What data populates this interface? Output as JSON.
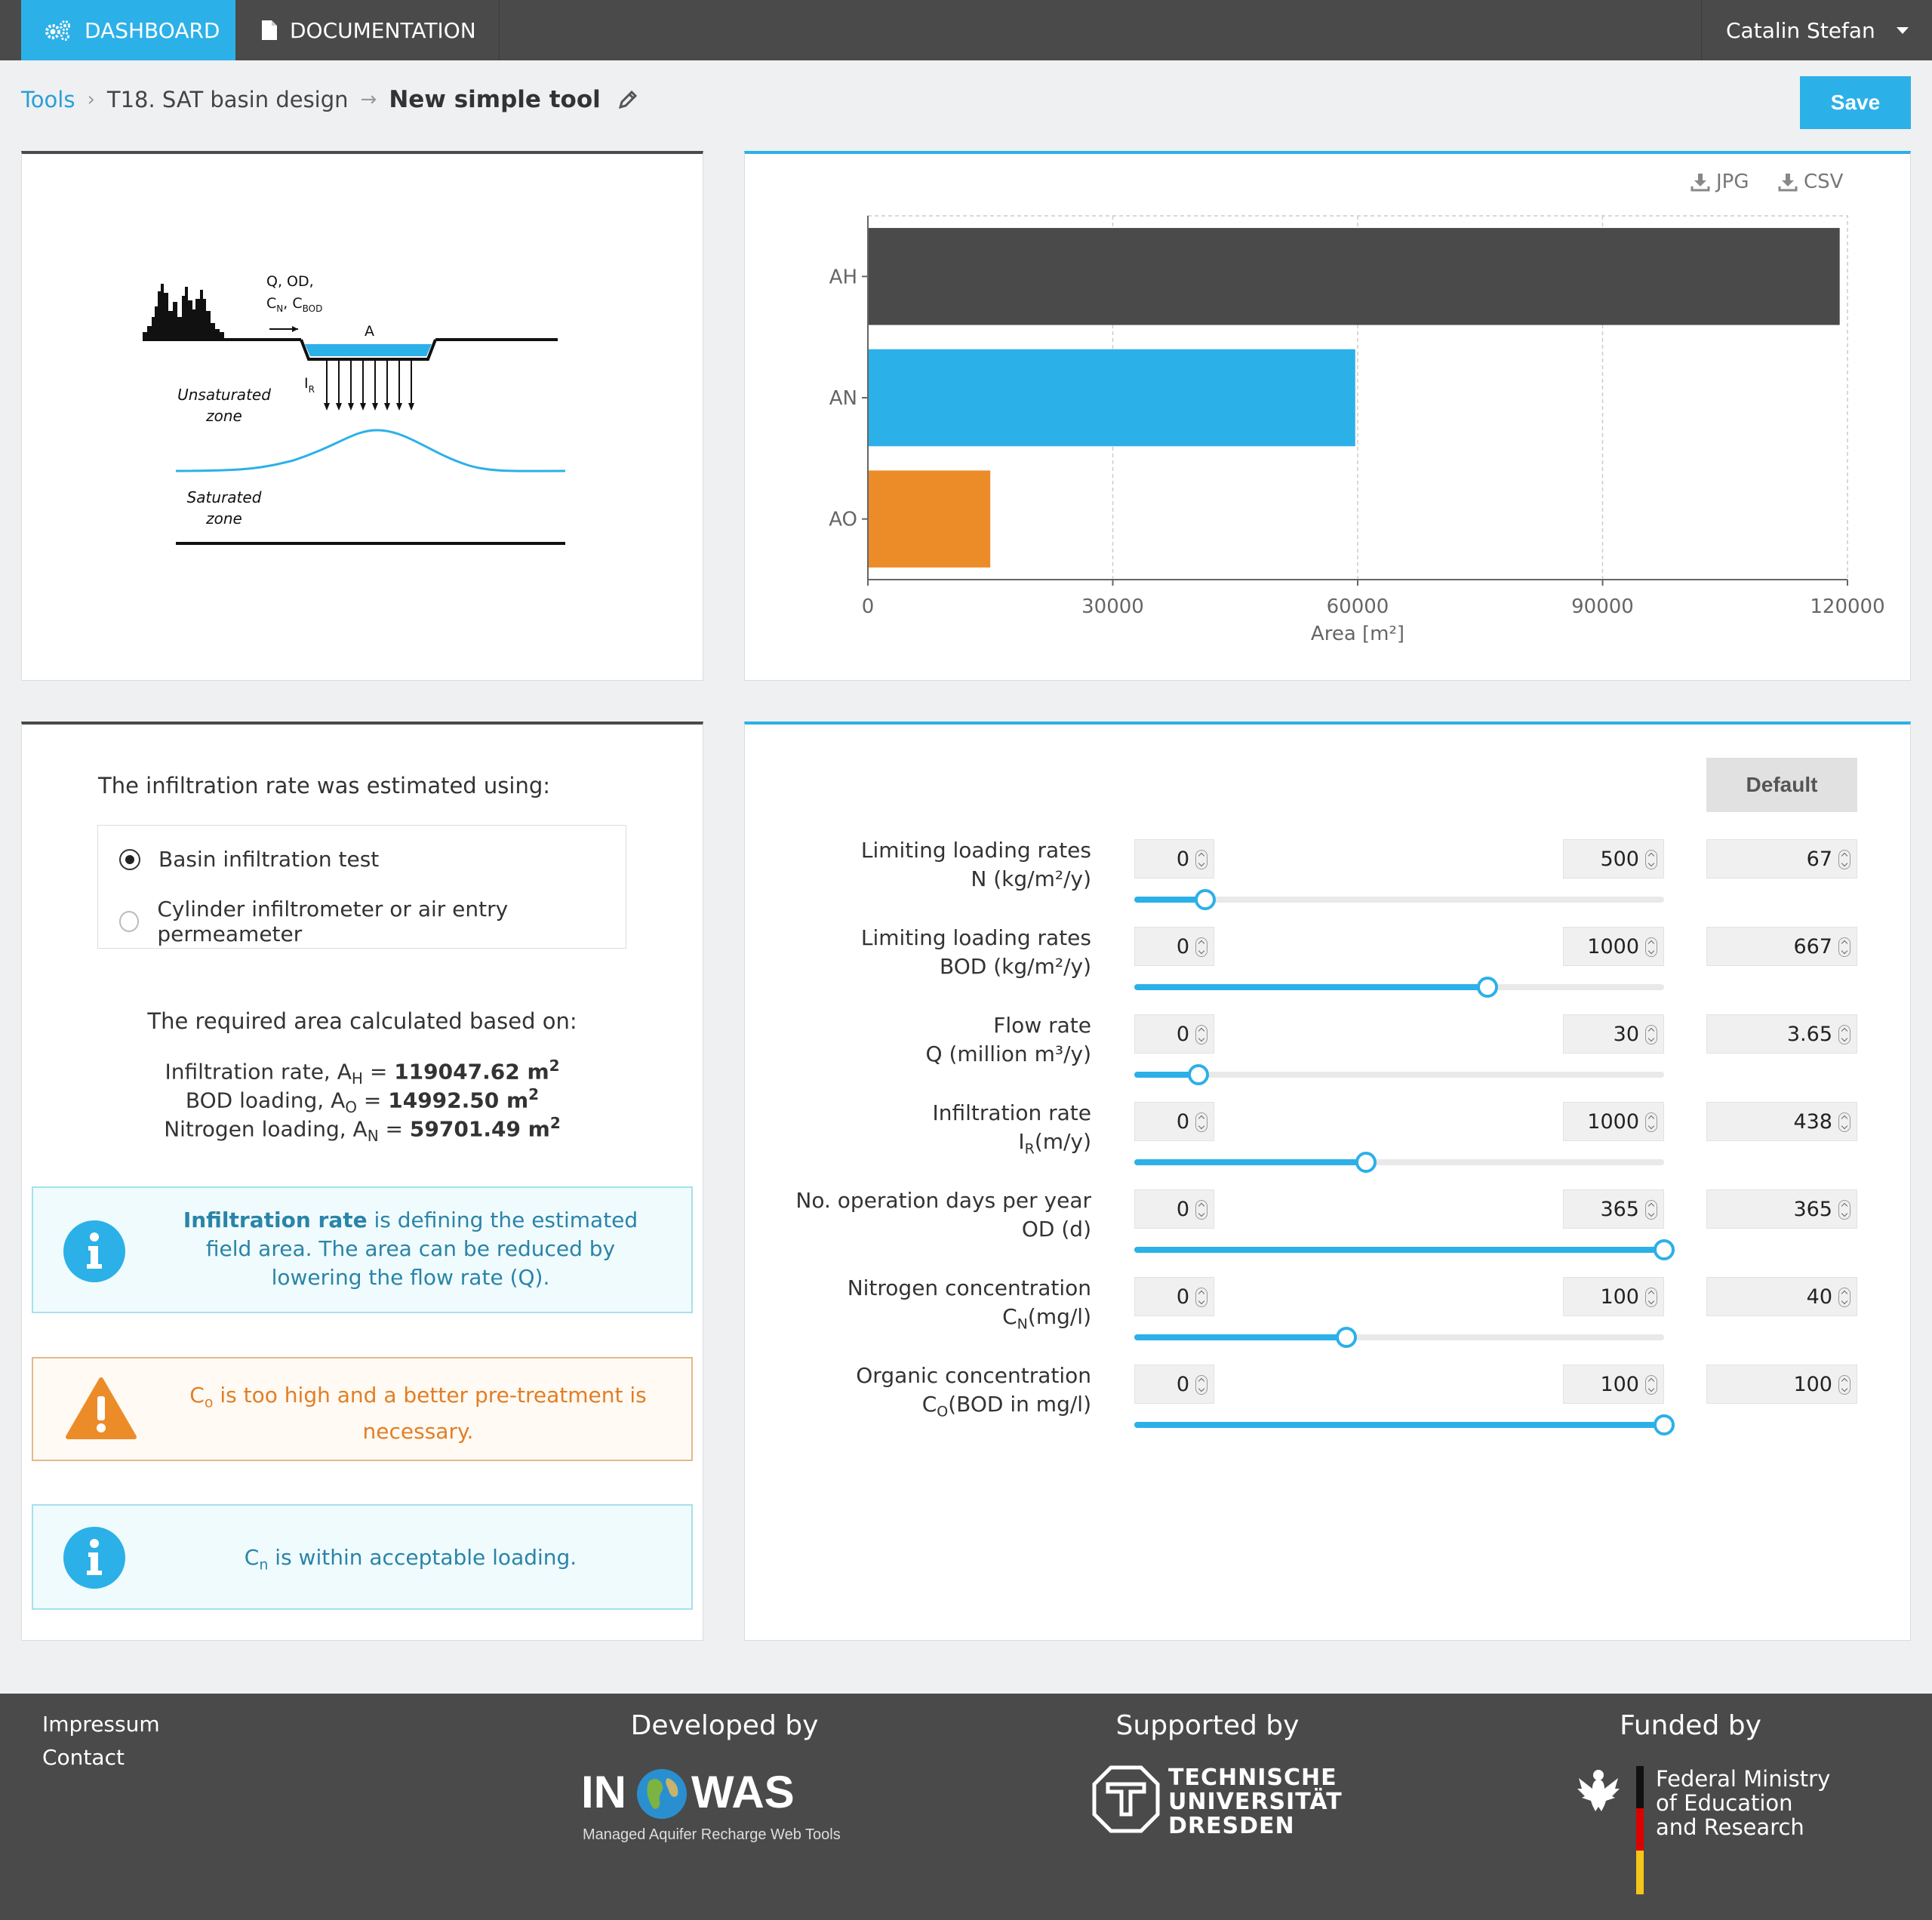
{
  "nav": {
    "dashboard_label": "DASHBOARD",
    "documentation_label": "DOCUMENTATION",
    "user_name": "Catalin Stefan"
  },
  "breadcrumb": {
    "tools": "Tools",
    "section": "T18. SAT basin design",
    "current": "New simple tool"
  },
  "toolbar": {
    "save_label": "Save"
  },
  "diagram": {
    "inflow_label_1": "Q, OD,",
    "inflow_label_2": "C",
    "inflow_sub_n": "N",
    "inflow_sep": ", C",
    "inflow_sub_bod": "BOD",
    "area_label": "A",
    "ir_label": "I",
    "ir_sub": "R",
    "unsat_1": "Unsaturated",
    "unsat_2": "zone",
    "sat_1": "Saturated",
    "sat_2": "zone"
  },
  "chart_export": {
    "jpg": "JPG",
    "csv": "CSV"
  },
  "chart_data": {
    "type": "bar",
    "orientation": "horizontal",
    "categories": [
      "AH",
      "AN",
      "AO"
    ],
    "values": [
      119047.62,
      59701.49,
      14992.5
    ],
    "colors": [
      "#4a4a4a",
      "#2cb0e8",
      "#ec8c29"
    ],
    "xlabel": "Area [m²]",
    "xlim": [
      0,
      120000
    ],
    "xticks": [
      0,
      30000,
      60000,
      90000,
      120000
    ],
    "grid": true
  },
  "infiltration": {
    "title": "The infiltration rate was estimated using:",
    "options": [
      "Basin infiltration test",
      "Cylinder infiltrometer or air entry permeameter"
    ],
    "selected_index": 0
  },
  "area": {
    "title": "The required area calculated based on:",
    "rows": [
      {
        "prefix": "Infiltration rate, A",
        "sub": "H",
        "eq": " = ",
        "value": "119047.62 m",
        "sup": "2"
      },
      {
        "prefix": "BOD loading, A",
        "sub": "O",
        "eq": " = ",
        "value": "14992.50 m",
        "sup": "2"
      },
      {
        "prefix": "Nitrogen loading, A",
        "sub": "N",
        "eq": " = ",
        "value": "59701.49 m",
        "sup": "2"
      }
    ]
  },
  "messages": {
    "info1_bold": "Infiltration rate",
    "info1_text": " is defining the estimated field area. The area can be reduced by lowering the flow rate (Q).",
    "warn_c": "C",
    "warn_sub": "o",
    "warn_text": " is too high and a better pre-treatment is necessary.",
    "info2_c": "C",
    "info2_sub": "n",
    "info2_text": " is within acceptable loading."
  },
  "params": {
    "default_label": "Default",
    "rows": [
      {
        "label1": "Limiting loading rates",
        "label2": "N (kg/m²/y)",
        "label2_sub": "",
        "label2_tail": "",
        "min": "0",
        "max": "500",
        "value": "67",
        "fraction": 0.134
      },
      {
        "label1": "Limiting loading rates",
        "label2": "BOD (kg/m²/y)",
        "label2_sub": "",
        "label2_tail": "",
        "min": "0",
        "max": "1000",
        "value": "667",
        "fraction": 0.667
      },
      {
        "label1": "Flow rate",
        "label2": "Q (million m³/y)",
        "label2_sub": "",
        "label2_tail": "",
        "min": "0",
        "max": "30",
        "value": "3.65",
        "fraction": 0.1217
      },
      {
        "label1": "Infiltration rate",
        "label2": "I",
        "label2_sub": "R",
        "label2_tail": "(m/y)",
        "min": "0",
        "max": "1000",
        "value": "438",
        "fraction": 0.438
      },
      {
        "label1": "No. operation days per year",
        "label2": "OD (d)",
        "label2_sub": "",
        "label2_tail": "",
        "min": "0",
        "max": "365",
        "value": "365",
        "fraction": 1.0
      },
      {
        "label1": "Nitrogen concentration",
        "label2": "C",
        "label2_sub": "N",
        "label2_tail": "(mg/l)",
        "min": "0",
        "max": "100",
        "value": "40",
        "fraction": 0.4
      },
      {
        "label1": "Organic concentration",
        "label2": "C",
        "label2_sub": "O",
        "label2_tail": "(BOD in mg/l)",
        "min": "0",
        "max": "100",
        "value": "100",
        "fraction": 1.0
      }
    ]
  },
  "footer": {
    "impressum": "Impressum",
    "contact": "Contact",
    "developed_by": "Developed by",
    "supported_by": "Supported by",
    "funded_by": "Funded by",
    "inowas_in": "IN",
    "inowas_was": "WAS",
    "inowas_tagline": "Managed Aquifer Recharge Web Tools",
    "tud_1": "TECHNISCHE",
    "tud_2": "UNIVERSITÄT",
    "tud_3": "DRESDEN",
    "bmbf_1": "Federal Ministry",
    "bmbf_2": "of Education",
    "bmbf_3": "and Research"
  }
}
